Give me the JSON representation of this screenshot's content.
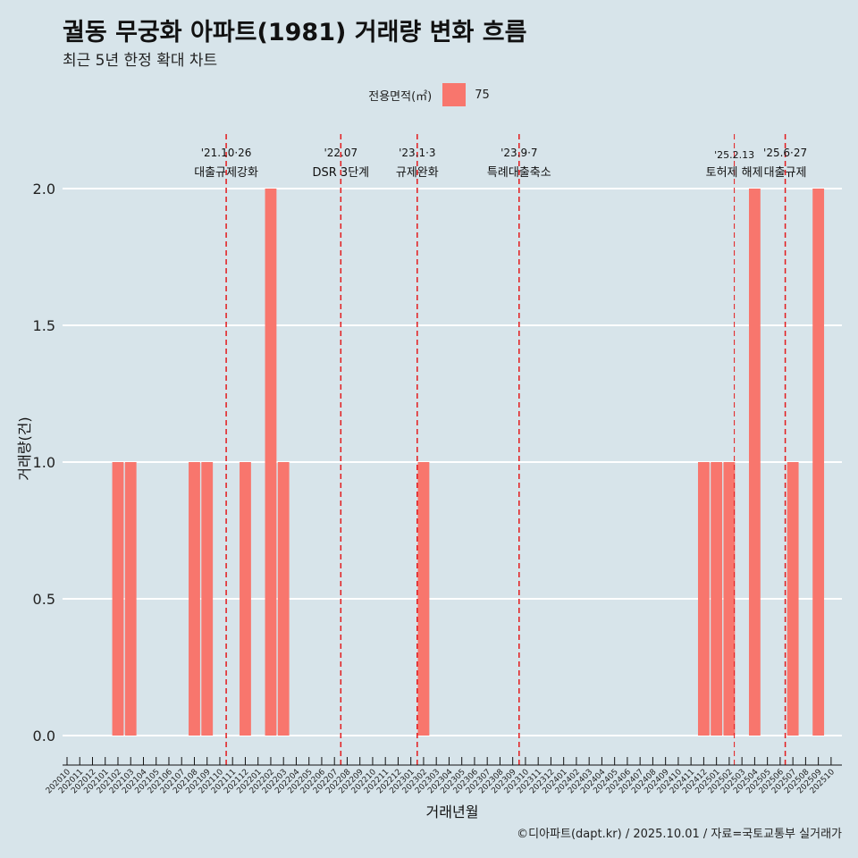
{
  "title": "궐동 무궁화 아파트(1981) 거래량 변화 흐름",
  "subtitle": "최근 5년 한정 확대 차트",
  "caption": "©디아파트(dapt.kr) / 2025.10.01 / 자료=국토교통부 실거래가",
  "colors": {
    "background": "#d7e4ea",
    "bar": "#f8766d",
    "event_line": "#e31a1c",
    "grid": "#ffffff"
  },
  "chart_data": {
    "type": "bar",
    "title": "궐동 무궁화 아파트(1981) 거래량 변화 흐름",
    "xlabel": "거래년월",
    "ylabel": "거래량(건)",
    "ylim": [
      0,
      2
    ],
    "yticks": [
      0.0,
      0.5,
      1.0,
      1.5,
      2.0
    ],
    "ytick_labels": [
      "0.0",
      "0.5",
      "1.0",
      "1.5",
      "2.0"
    ],
    "grid": true,
    "legend": {
      "title": "전용면적(㎡)",
      "position": "top",
      "entries": [
        "75"
      ]
    },
    "categories": [
      "202010",
      "202011",
      "202012",
      "202101",
      "202102",
      "202103",
      "202104",
      "202105",
      "202106",
      "202107",
      "202108",
      "202109",
      "202110",
      "202111",
      "202112",
      "202201",
      "202202",
      "202203",
      "202204",
      "202205",
      "202206",
      "202207",
      "202208",
      "202209",
      "202210",
      "202211",
      "202212",
      "202301",
      "202302",
      "202303",
      "202304",
      "202305",
      "202306",
      "202307",
      "202308",
      "202309",
      "202310",
      "202311",
      "202312",
      "202401",
      "202402",
      "202403",
      "202404",
      "202405",
      "202406",
      "202407",
      "202408",
      "202409",
      "202410",
      "202411",
      "202412",
      "202501",
      "202502",
      "202503",
      "202504",
      "202505",
      "202506",
      "202507",
      "202508",
      "202509",
      "202510"
    ],
    "series": [
      {
        "name": "75",
        "values": [
          0,
          0,
          0,
          0,
          1,
          1,
          0,
          0,
          0,
          0,
          1,
          1,
          0,
          0,
          1,
          0,
          2,
          1,
          0,
          0,
          0,
          0,
          0,
          0,
          0,
          0,
          0,
          0,
          1,
          0,
          0,
          0,
          0,
          0,
          0,
          0,
          0,
          0,
          0,
          0,
          0,
          0,
          0,
          0,
          0,
          0,
          0,
          0,
          0,
          0,
          1,
          1,
          1,
          0,
          2,
          0,
          0,
          1,
          0,
          2,
          0
        ]
      }
    ],
    "events": [
      {
        "position": 12.5,
        "date": "'21.10·26",
        "label": "대출규제강화"
      },
      {
        "position": 21.5,
        "date": "'22.07",
        "label": "DSR 3단계"
      },
      {
        "position": 27.5,
        "date": "'23.1·3",
        "label": "규제완화"
      },
      {
        "position": 35.5,
        "date": "'23.9·7",
        "label": "특례대출축소"
      },
      {
        "position": 52.4,
        "date": "'25.2.13",
        "label": "토허제 해제"
      },
      {
        "position": 56.4,
        "date": "'25.6·27",
        "label": "대출규제"
      }
    ]
  }
}
